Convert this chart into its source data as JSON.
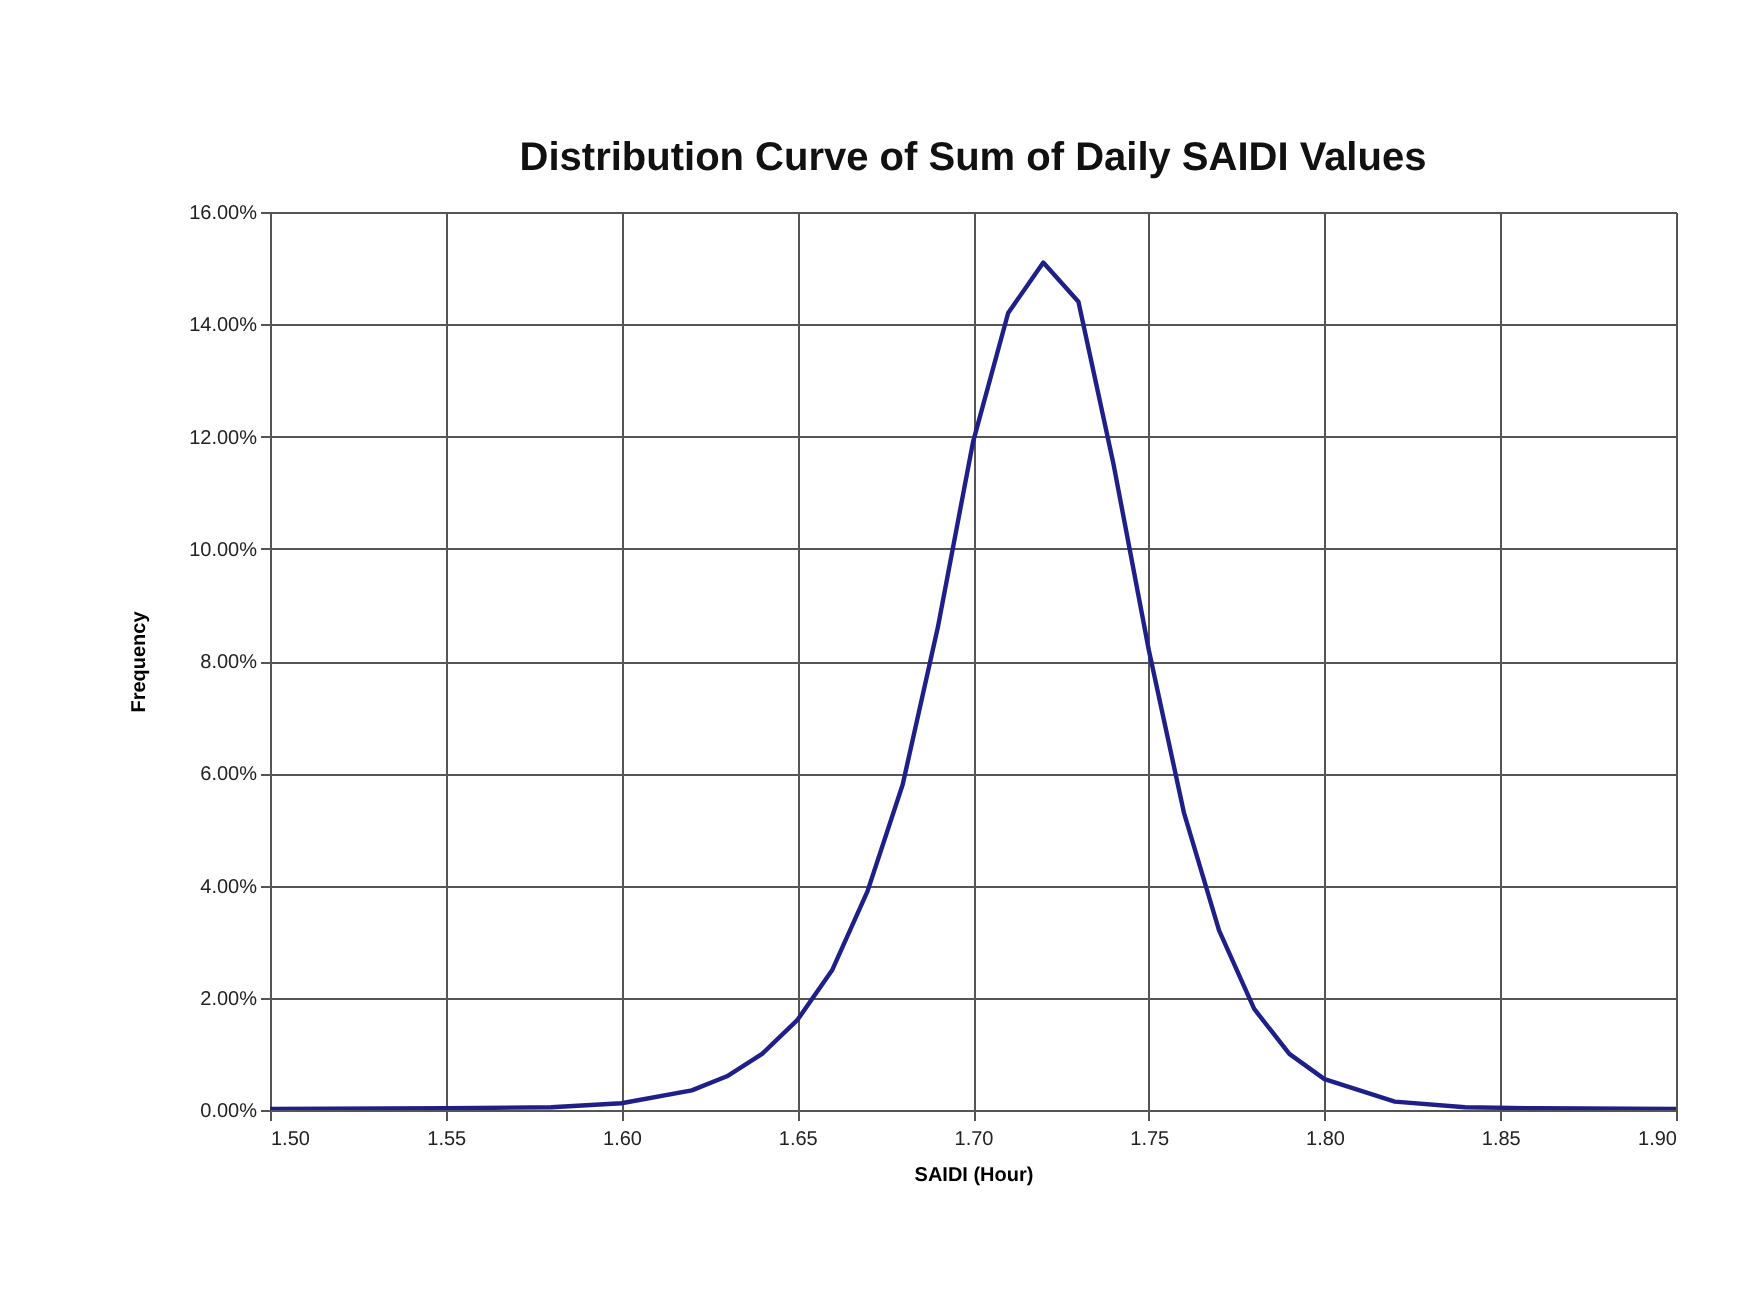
{
  "chart_data": {
    "type": "line",
    "title": "Distribution Curve of Sum of Daily SAIDI Values",
    "xlabel": "SAIDI (Hour)",
    "ylabel": "Frequency",
    "x": [
      1.5,
      1.55,
      1.58,
      1.6,
      1.62,
      1.63,
      1.64,
      1.65,
      1.66,
      1.67,
      1.68,
      1.69,
      1.7,
      1.71,
      1.72,
      1.73,
      1.74,
      1.75,
      1.76,
      1.77,
      1.78,
      1.79,
      1.8,
      1.82,
      1.84,
      1.86,
      1.9
    ],
    "series": [
      {
        "color": "#1f1f8a",
        "values": [
          0.02,
          0.03,
          0.05,
          0.12,
          0.35,
          0.6,
          1.0,
          1.6,
          2.5,
          3.9,
          5.8,
          8.6,
          11.9,
          14.2,
          15.1,
          14.4,
          11.5,
          8.2,
          5.3,
          3.2,
          1.8,
          1.0,
          0.55,
          0.15,
          0.05,
          0.03,
          0.02
        ]
      }
    ],
    "xlim": [
      1.5,
      1.9
    ],
    "ylim": [
      0,
      16
    ],
    "xticks": [
      {
        "value": 1.5,
        "label": "1.50"
      },
      {
        "value": 1.55,
        "label": "1.55"
      },
      {
        "value": 1.6,
        "label": "1.60"
      },
      {
        "value": 1.65,
        "label": "1.65"
      },
      {
        "value": 1.7,
        "label": "1.70"
      },
      {
        "value": 1.75,
        "label": "1.75"
      },
      {
        "value": 1.8,
        "label": "1.80"
      },
      {
        "value": 1.85,
        "label": "1.85"
      },
      {
        "value": 1.9,
        "label": "1.90"
      }
    ],
    "yticks": [
      {
        "value": 0,
        "label": "0.00%"
      },
      {
        "value": 2,
        "label": "2.00%"
      },
      {
        "value": 4,
        "label": "4.00%"
      },
      {
        "value": 6,
        "label": "6.00%"
      },
      {
        "value": 8,
        "label": "8.00%"
      },
      {
        "value": 10,
        "label": "10.00%"
      },
      {
        "value": 12,
        "label": "12.00%"
      },
      {
        "value": 14,
        "label": "14.00%"
      },
      {
        "value": 16,
        "label": "16.00%"
      }
    ],
    "grid": true,
    "marker": "none",
    "line_style": "solid"
  }
}
